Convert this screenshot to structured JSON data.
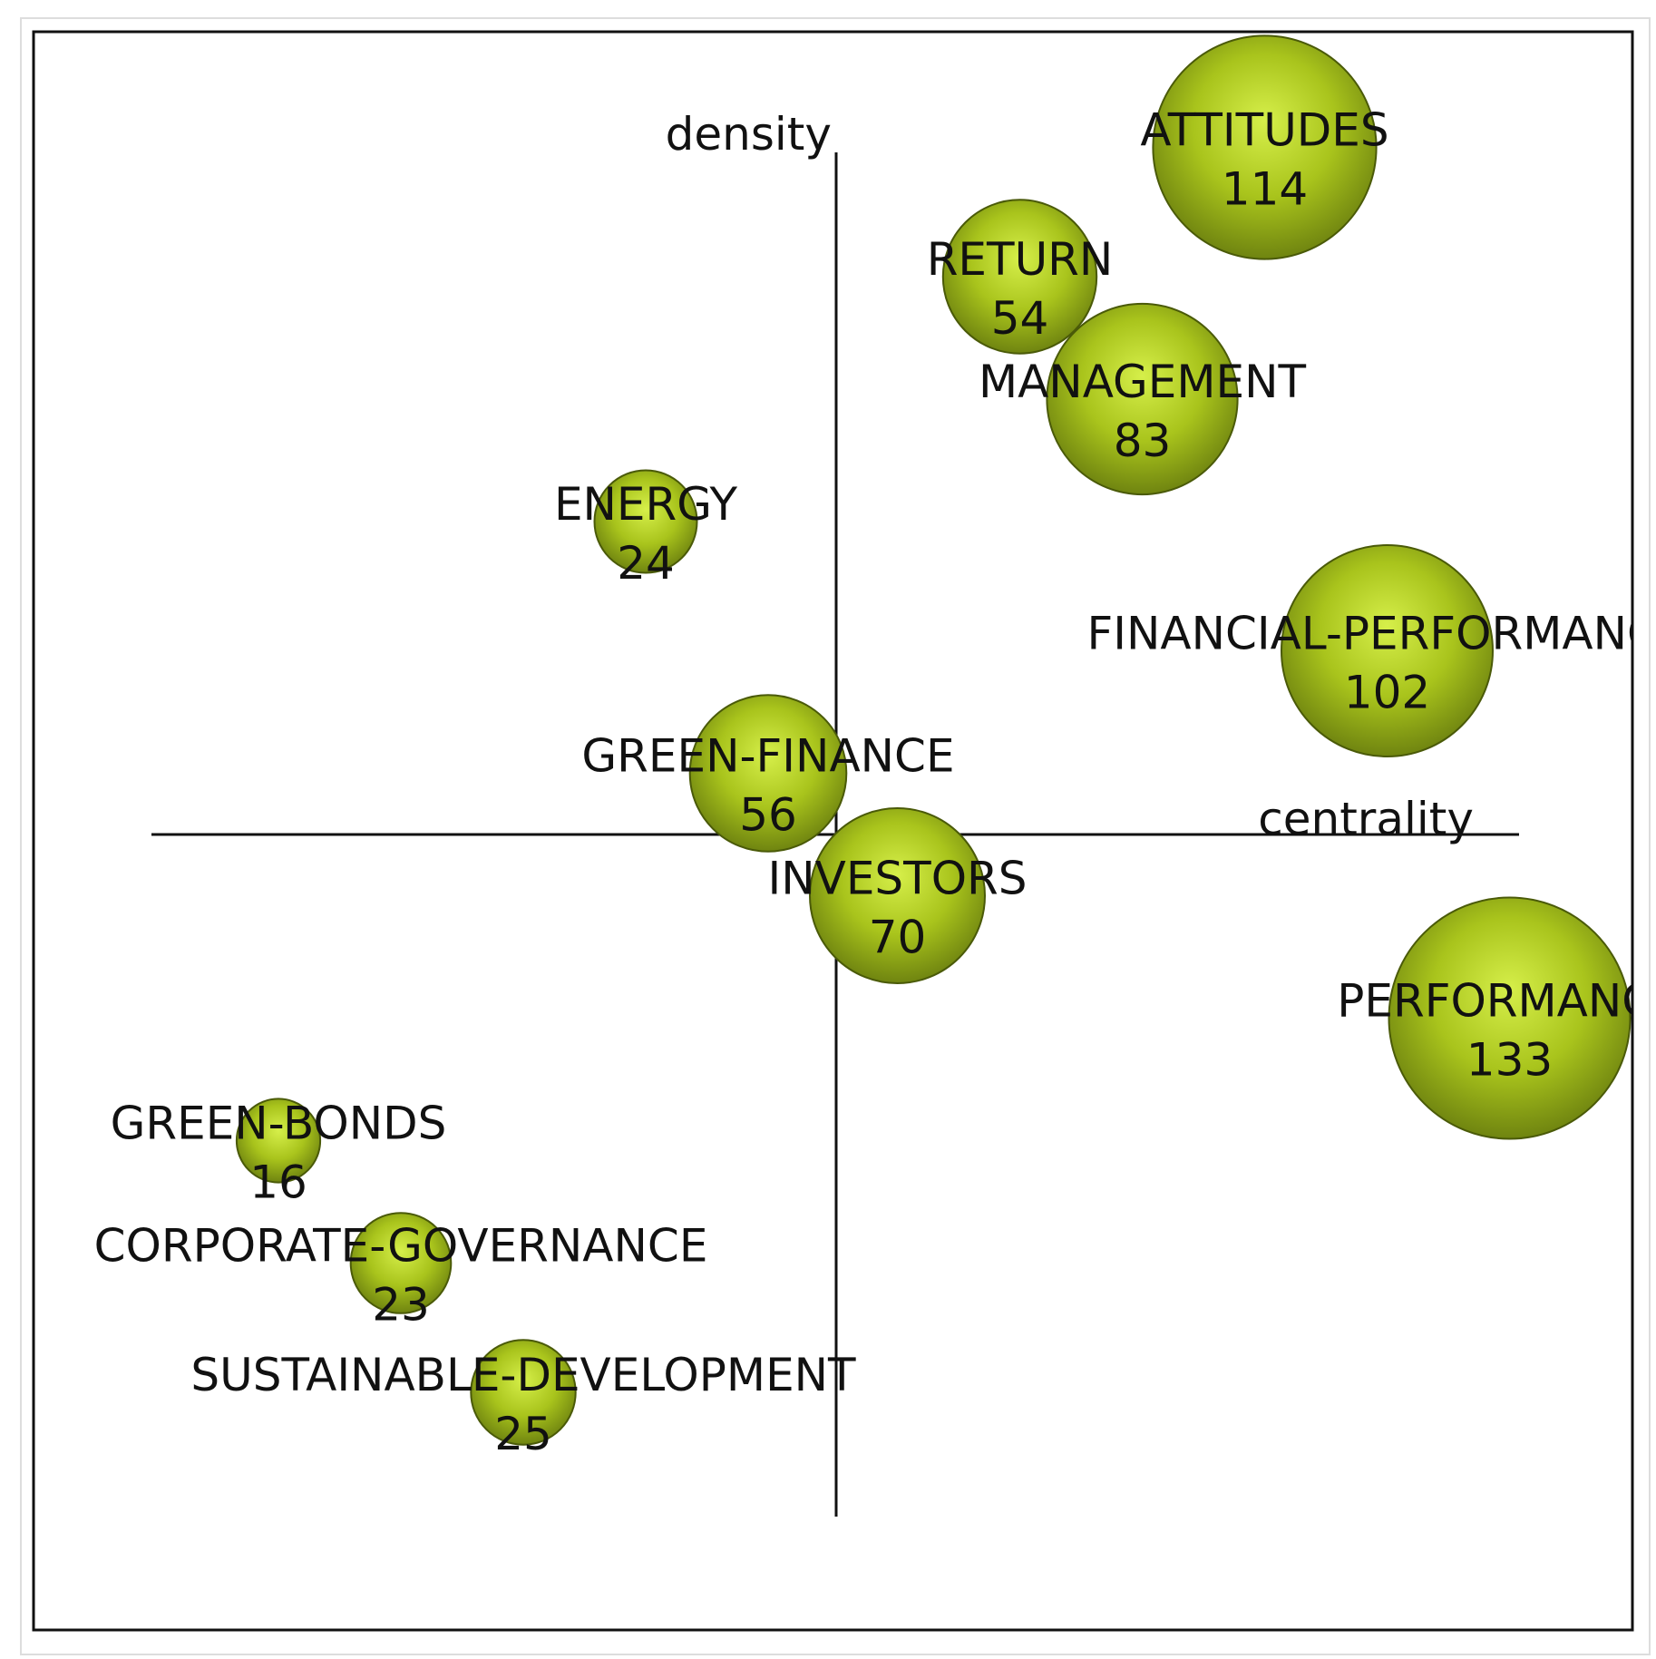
{
  "chart_data": {
    "type": "scatter",
    "subtype": "bubble",
    "xlabel": "centrality",
    "ylabel": "density",
    "grid": false,
    "legend": "none",
    "bubble_color": "#a9c41c",
    "bubble_highlight": "#d6ef4a",
    "bubble_edge": "#4a5a08",
    "axis_crossing": [
      0,
      0
    ],
    "xlim": [
      -1,
      1
    ],
    "ylim": [
      -1,
      1
    ],
    "points": [
      {
        "label": "ATTITUDES",
        "value": "114",
        "size": 114,
        "x": 0.63,
        "y": 1.01
      },
      {
        "label": "RETURN",
        "value": "54",
        "size": 54,
        "x": 0.27,
        "y": 0.82
      },
      {
        "label": "MANAGEMENT",
        "value": "83",
        "size": 83,
        "x": 0.45,
        "y": 0.64
      },
      {
        "label": "ENERGY",
        "value": "24",
        "size": 24,
        "x": -0.28,
        "y": 0.46
      },
      {
        "label": "FINANCIAL-PERFORMANCE",
        "value": "102",
        "size": 102,
        "x": 0.81,
        "y": 0.27
      },
      {
        "label": "GREEN-FINANCE",
        "value": "56",
        "size": 56,
        "x": -0.1,
        "y": 0.09
      },
      {
        "label": "INVESTORS",
        "value": "70",
        "size": 70,
        "x": 0.09,
        "y": -0.09
      },
      {
        "label": "PERFORMANCE",
        "value": "133",
        "size": 133,
        "x": 0.99,
        "y": -0.27
      },
      {
        "label": "GREEN-BONDS",
        "value": "16",
        "size": 16,
        "x": -0.82,
        "y": -0.45
      },
      {
        "label": "CORPORATE-GOVERNANCE",
        "value": "23",
        "size": 23,
        "x": -0.64,
        "y": -0.63
      },
      {
        "label": "SUSTAINABLE-DEVELOPMENT",
        "value": "25",
        "size": 25,
        "x": -0.46,
        "y": -0.82
      }
    ]
  }
}
